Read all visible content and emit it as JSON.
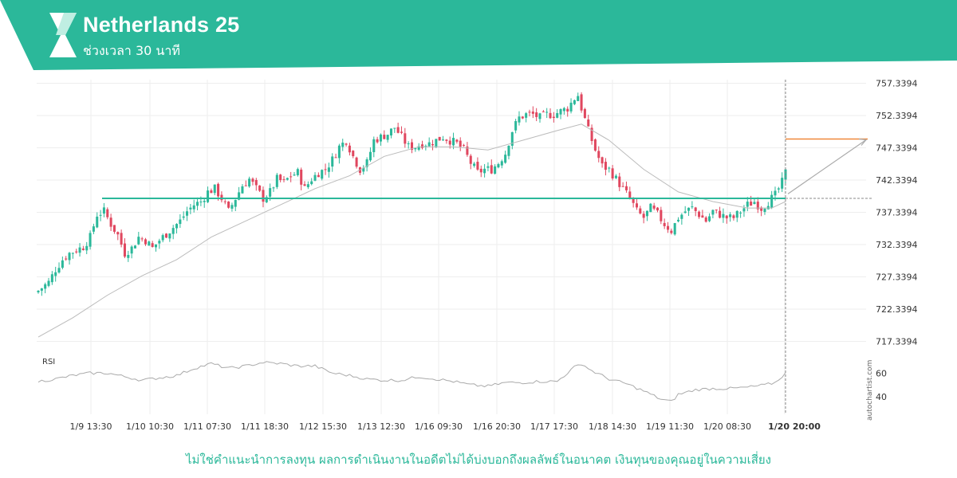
{
  "header": {
    "title": "Netherlands 25",
    "subtitle": "ช่วงเวลา 30 นาที",
    "brand_color": "#2bb89a"
  },
  "disclaimer": "ไม่ใช่คำแนะนำการลงทุน ผลการดำเนินงานในอดีตไม่ได้บ่งบอกถึงผลลัพธ์ในอนาคต เงินทุนของคุณอยู่ในความเสี่ยง",
  "watermark": "autochartist.com",
  "chart_data": {
    "type": "candlestick",
    "timeframe": "30 นาที",
    "y_ticks": [
      "757.3394",
      "752.3394",
      "747.3394",
      "742.3394",
      "737.3394",
      "732.3394",
      "727.3394",
      "722.3394",
      "717.3394"
    ],
    "ylim": [
      716.0,
      758.5
    ],
    "x_ticks": [
      "1/9 13:30",
      "1/10 10:30",
      "1/11 07:30",
      "1/11 18:30",
      "1/12 15:30",
      "1/13 12:30",
      "1/16 09:30",
      "1/16 20:30",
      "1/17 17:30",
      "1/18 14:30",
      "1/19 11:30",
      "1/20 08:30",
      "1/20 20:00"
    ],
    "highlighted_x_tick": "1/20 20:00",
    "support_level": 739.5,
    "target_level": 748.7,
    "close_path": [
      [
        0,
        725.2
      ],
      [
        3,
        726.5
      ],
      [
        5,
        728.5
      ],
      [
        7,
        730.0
      ],
      [
        9,
        731.0
      ],
      [
        11,
        731.5
      ],
      [
        13,
        732.0
      ],
      [
        15,
        733.5
      ],
      [
        17,
        737.0
      ],
      [
        19,
        737.5
      ],
      [
        21,
        735.5
      ],
      [
        23,
        733.8
      ],
      [
        25,
        731.0
      ],
      [
        27,
        731.8
      ],
      [
        29,
        733.5
      ],
      [
        31,
        733.0
      ],
      [
        33,
        731.8
      ],
      [
        35,
        733.0
      ],
      [
        37,
        734.0
      ],
      [
        39,
        735.0
      ],
      [
        41,
        736.0
      ],
      [
        43,
        737.5
      ],
      [
        45,
        738.5
      ],
      [
        47,
        739.0
      ],
      [
        49,
        740.5
      ],
      [
        51,
        741.0
      ],
      [
        53,
        739.5
      ],
      [
        55,
        737.5
      ],
      [
        57,
        739.5
      ],
      [
        59,
        741.5
      ],
      [
        61,
        742.5
      ],
      [
        63,
        741.0
      ],
      [
        65,
        739.5
      ],
      [
        67,
        740.5
      ],
      [
        69,
        742.5
      ],
      [
        71,
        742.0
      ],
      [
        73,
        743.0
      ],
      [
        75,
        743.5
      ],
      [
        77,
        741.0
      ],
      [
        79,
        742.5
      ],
      [
        81,
        743.5
      ],
      [
        83,
        744.0
      ],
      [
        85,
        745.5
      ],
      [
        87,
        747.5
      ],
      [
        89,
        748.5
      ],
      [
        91,
        746.0
      ],
      [
        93,
        744.0
      ],
      [
        95,
        745.0
      ],
      [
        97,
        748.5
      ],
      [
        99,
        749.0
      ],
      [
        101,
        749.5
      ],
      [
        103,
        750.5
      ],
      [
        105,
        749.0
      ],
      [
        107,
        747.5
      ],
      [
        109,
        747.5
      ],
      [
        111,
        748.0
      ],
      [
        113,
        748.0
      ],
      [
        115,
        748.5
      ],
      [
        117,
        749.0
      ],
      [
        119,
        748.5
      ],
      [
        121,
        748.0
      ],
      [
        123,
        747.0
      ],
      [
        125,
        745.0
      ],
      [
        127,
        743.5
      ],
      [
        129,
        744.0
      ],
      [
        131,
        744.0
      ],
      [
        133,
        745.0
      ],
      [
        135,
        746.5
      ],
      [
        137,
        750.0
      ],
      [
        139,
        752.0
      ],
      [
        141,
        752.5
      ],
      [
        143,
        752.5
      ],
      [
        145,
        752.0
      ],
      [
        147,
        752.5
      ],
      [
        149,
        752.5
      ],
      [
        151,
        753.0
      ],
      [
        153,
        753.5
      ],
      [
        155,
        755.0
      ],
      [
        156,
        755.5
      ],
      [
        157,
        753.5
      ],
      [
        159,
        750.0
      ],
      [
        161,
        747.0
      ],
      [
        163,
        744.5
      ],
      [
        165,
        744.0
      ],
      [
        167,
        742.5
      ],
      [
        169,
        741.0
      ],
      [
        171,
        739.5
      ],
      [
        173,
        737.5
      ],
      [
        175,
        736.5
      ],
      [
        177,
        738.0
      ],
      [
        179,
        737.0
      ],
      [
        181,
        735.5
      ],
      [
        183,
        734.5
      ],
      [
        185,
        736.5
      ],
      [
        187,
        737.5
      ],
      [
        189,
        738.0
      ],
      [
        191,
        737.0
      ],
      [
        193,
        736.0
      ],
      [
        195,
        737.5
      ],
      [
        197,
        737.0
      ],
      [
        199,
        736.5
      ],
      [
        201,
        736.5
      ],
      [
        203,
        737.5
      ],
      [
        205,
        738.5
      ],
      [
        207,
        739.0
      ],
      [
        209,
        738.0
      ],
      [
        211,
        739.0
      ],
      [
        213,
        740.0
      ],
      [
        215,
        742.0
      ],
      [
        216,
        743.5
      ]
    ],
    "moving_average": [
      [
        0,
        718.0
      ],
      [
        10,
        721.0
      ],
      [
        20,
        724.5
      ],
      [
        30,
        727.5
      ],
      [
        40,
        730.0
      ],
      [
        50,
        733.5
      ],
      [
        60,
        736.0
      ],
      [
        70,
        738.5
      ],
      [
        80,
        741.0
      ],
      [
        90,
        743.0
      ],
      [
        100,
        746.0
      ],
      [
        110,
        747.5
      ],
      [
        120,
        747.5
      ],
      [
        130,
        747.0
      ],
      [
        140,
        748.5
      ],
      [
        150,
        750.0
      ],
      [
        157,
        751.0
      ],
      [
        165,
        748.5
      ],
      [
        175,
        744.0
      ],
      [
        185,
        740.5
      ],
      [
        195,
        739.0
      ],
      [
        205,
        738.0
      ],
      [
        212,
        738.0
      ],
      [
        216,
        739.0
      ]
    ],
    "rsi": {
      "label": "RSI",
      "ticks": [
        "60",
        "40"
      ],
      "ylim": [
        28,
        75
      ],
      "values": [
        [
          0,
          53
        ],
        [
          5,
          55
        ],
        [
          10,
          58
        ],
        [
          15,
          60
        ],
        [
          20,
          60
        ],
        [
          25,
          57
        ],
        [
          30,
          54
        ],
        [
          35,
          56
        ],
        [
          40,
          58
        ],
        [
          45,
          64
        ],
        [
          50,
          68
        ],
        [
          55,
          64
        ],
        [
          60,
          66
        ],
        [
          65,
          69
        ],
        [
          70,
          68
        ],
        [
          75,
          66
        ],
        [
          80,
          66
        ],
        [
          85,
          60
        ],
        [
          90,
          58
        ],
        [
          95,
          55
        ],
        [
          100,
          54
        ],
        [
          105,
          54
        ],
        [
          110,
          57
        ],
        [
          115,
          55
        ],
        [
          120,
          53
        ],
        [
          125,
          50
        ],
        [
          130,
          49
        ],
        [
          135,
          52
        ],
        [
          140,
          52
        ],
        [
          145,
          53
        ],
        [
          150,
          53
        ],
        [
          155,
          65
        ],
        [
          157,
          68
        ],
        [
          160,
          62
        ],
        [
          165,
          55
        ],
        [
          170,
          51
        ],
        [
          175,
          45
        ],
        [
          180,
          38
        ],
        [
          183,
          36
        ],
        [
          185,
          42
        ],
        [
          190,
          46
        ],
        [
          195,
          47
        ],
        [
          200,
          47
        ],
        [
          205,
          48
        ],
        [
          210,
          50
        ],
        [
          213,
          52
        ],
        [
          216,
          60
        ]
      ]
    },
    "colors": {
      "up": "#2bb89a",
      "down": "#e0475f",
      "support": "#2bb89a",
      "target": "#f0883a",
      "ma": "#bbbbbb",
      "rsi": "#aaaaaa",
      "projection": "#aaaaaa",
      "grid": "#eeeeee"
    }
  }
}
